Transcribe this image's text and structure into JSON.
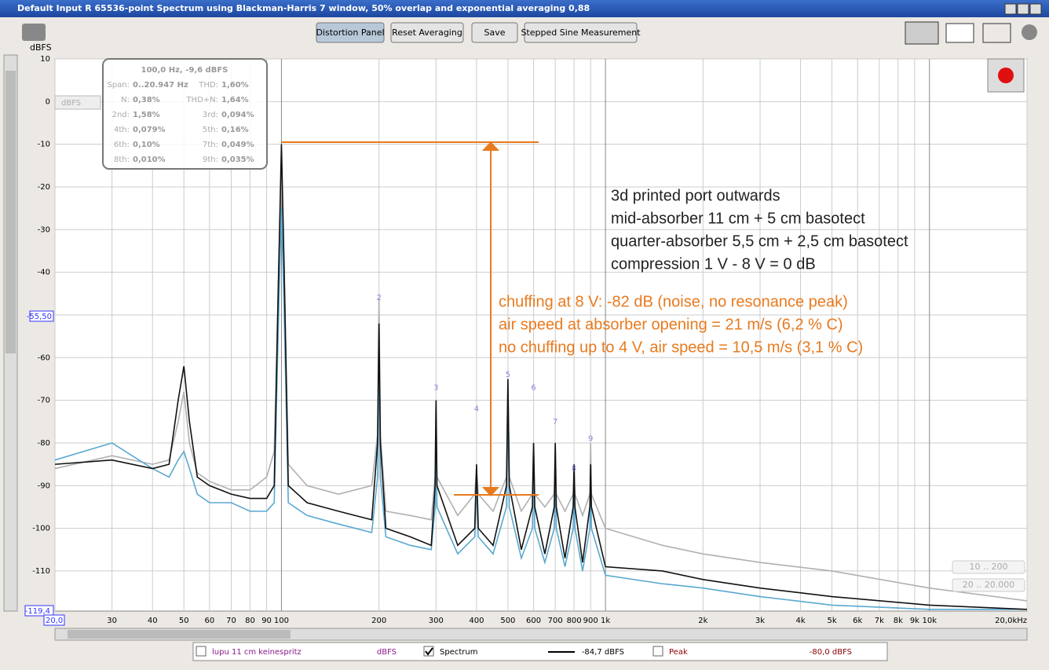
{
  "window": {
    "title": "Default Input R 65536-point Spectrum using Blackman-Harris 7 window, 50% overlap and exponential averaging 0,88"
  },
  "toolbar": {
    "buttons": [
      "Distortion Panel",
      "Reset Averaging",
      "Save",
      "Stepped Sine Measurement"
    ]
  },
  "overlay": {
    "header": "100,0 Hz, -9,6 dBFS",
    "unit": "dBFS",
    "rows": [
      [
        "Span:",
        "0..20.947 Hz",
        "THD:",
        "1,60%"
      ],
      [
        "N:",
        "0,38%",
        "THD+N:",
        "1,64%"
      ],
      [
        "2nd:",
        "1,58%",
        "3rd:",
        "0,094%"
      ],
      [
        "4th:",
        "0,079%",
        "5th:",
        "0,16%"
      ],
      [
        "6th:",
        "0,10%",
        "7th:",
        "0,049%"
      ],
      [
        "8th:",
        "0,010%",
        "9th:",
        "0,035%"
      ]
    ]
  },
  "range_buttons": [
    "10 .. 200",
    "20 .. 20.000"
  ],
  "cursor_readout": "-55,50",
  "legend_bar": {
    "entries": [
      {
        "name": "lupu 11 cm keinespritz",
        "reading": "dBFS",
        "checked": false,
        "color": "#8b1a8b"
      },
      {
        "name": "Spectrum",
        "reading": "-84,7 dBFS",
        "checked": true,
        "color": "#000000"
      },
      {
        "name": "Peak",
        "reading": "-80,0 dBFS",
        "checked": false,
        "color": "#8b0000"
      }
    ]
  },
  "chart_data": {
    "type": "line",
    "ylabel": "dBFS",
    "log_x": true,
    "grid": true,
    "xlim": [
      20,
      20000
    ],
    "ylim": [
      -119.4,
      10
    ],
    "xticks": [
      {
        "value": 20,
        "label": "20,0"
      },
      30,
      40,
      50,
      60,
      70,
      80,
      90,
      100,
      200,
      300,
      400,
      500,
      600,
      700,
      800,
      900,
      {
        "value": 1000,
        "label": "1k"
      },
      {
        "value": 2000,
        "label": "2k"
      },
      {
        "value": 3000,
        "label": "3k"
      },
      {
        "value": 4000,
        "label": "4k"
      },
      {
        "value": 5000,
        "label": "5k"
      },
      {
        "value": 6000,
        "label": "6k"
      },
      {
        "value": 7000,
        "label": "7k"
      },
      {
        "value": 8000,
        "label": "8k"
      },
      {
        "value": 9000,
        "label": "9k"
      },
      {
        "value": 10000,
        "label": "10k"
      },
      {
        "value": 20000,
        "label": "20,0kHz"
      }
    ],
    "yticks": [
      10,
      0,
      -10,
      -20,
      -30,
      -40,
      -50,
      -60,
      -70,
      -80,
      -90,
      -100,
      -110,
      {
        "value": -119.4,
        "label": "-119,4"
      }
    ],
    "x": [
      20,
      30,
      40,
      45,
      48,
      50,
      52,
      55,
      60,
      70,
      80,
      90,
      95,
      98,
      100,
      102,
      105,
      120,
      150,
      190,
      198,
      200,
      202,
      210,
      250,
      290,
      298,
      300,
      302,
      350,
      395,
      400,
      405,
      450,
      495,
      500,
      505,
      550,
      595,
      600,
      605,
      650,
      695,
      700,
      705,
      750,
      795,
      800,
      805,
      850,
      895,
      900,
      905,
      1000,
      1500,
      2000,
      3000,
      5000,
      10000,
      20000
    ],
    "series": [
      {
        "color": "#b0b0b0",
        "values": [
          -86,
          -83,
          -85,
          -84,
          -75,
          -68,
          -80,
          -87,
          -89,
          -91,
          -91,
          -88,
          -82,
          -40,
          -18,
          -40,
          -85,
          -90,
          -92,
          -90,
          -78,
          -46,
          -78,
          -96,
          -97,
          -98,
          -88,
          -70,
          -88,
          -97,
          -92,
          -86,
          -92,
          -96,
          -88,
          -66,
          -88,
          -96,
          -92,
          -80,
          -92,
          -95,
          -92,
          -80,
          -92,
          -96,
          -92,
          -86,
          -92,
          -97,
          -92,
          -80,
          -92,
          -100,
          -104,
          -106,
          -108,
          -110,
          -114,
          -117
        ]
      },
      {
        "color": "#5aa8d0",
        "values": [
          -84,
          -80,
          -86,
          -88,
          -84,
          -82,
          -86,
          -92,
          -94,
          -94,
          -96,
          -96,
          -94,
          -50,
          -25,
          -50,
          -94,
          -97,
          -99,
          -101,
          -88,
          -58,
          -88,
          -102,
          -104,
          -105,
          -95,
          -74,
          -95,
          -106,
          -102,
          -90,
          -102,
          -106,
          -95,
          -70,
          -95,
          -107,
          -100,
          -84,
          -100,
          -108,
          -100,
          -86,
          -100,
          -109,
          -100,
          -90,
          -100,
          -110,
          -100,
          -88,
          -100,
          -111,
          -113,
          -114,
          -116,
          -118,
          -119,
          -119
        ]
      },
      {
        "color": "#111111",
        "values": [
          -85,
          -84,
          -86,
          -85,
          -70,
          -62,
          -75,
          -88,
          -90,
          -92,
          -93,
          -93,
          -90,
          -40,
          -10,
          -40,
          -90,
          -94,
          -96,
          -98,
          -80,
          -52,
          -80,
          -100,
          -102,
          -104,
          -90,
          -70,
          -90,
          -104,
          -100,
          -85,
          -100,
          -104,
          -90,
          -65,
          -90,
          -105,
          -95,
          -80,
          -95,
          -106,
          -95,
          -80,
          -95,
          -107,
          -95,
          -85,
          -95,
          -108,
          -95,
          -85,
          -95,
          -109,
          -110,
          -112,
          -114,
          -116,
          -118,
          -119
        ]
      }
    ],
    "harmonics": [
      {
        "x": 200,
        "y": -46,
        "order": 2
      },
      {
        "x": 300,
        "y": -67,
        "order": 3
      },
      {
        "x": 400,
        "y": -72,
        "order": 4
      },
      {
        "x": 500,
        "y": -64,
        "order": 5
      },
      {
        "x": 600,
        "y": -67,
        "order": 6
      },
      {
        "x": 700,
        "y": -75,
        "order": 7
      },
      {
        "x": 800,
        "y": -86,
        "order": 8
      },
      {
        "x": 900,
        "y": -79,
        "order": 9
      }
    ],
    "annotations": [
      {
        "color": "#222222",
        "lines": [
          "3d printed port outwards",
          "mid-absorber 11 cm + 5 cm basotect",
          "quarter-absorber 5,5 cm + 2,5 cm basotect",
          "compression 1 V - 8 V = 0 dB"
        ]
      },
      {
        "color": "#e87a1e",
        "lines": [
          "chuffing at 8 V: -82 dB (noise, no resonance peak)",
          "air speed at absorber opening = 21 m/s (6,2 % C)",
          "no chuffing up to 4 V, air speed = 10,5 m/s (3,1 % C)"
        ]
      }
    ]
  }
}
